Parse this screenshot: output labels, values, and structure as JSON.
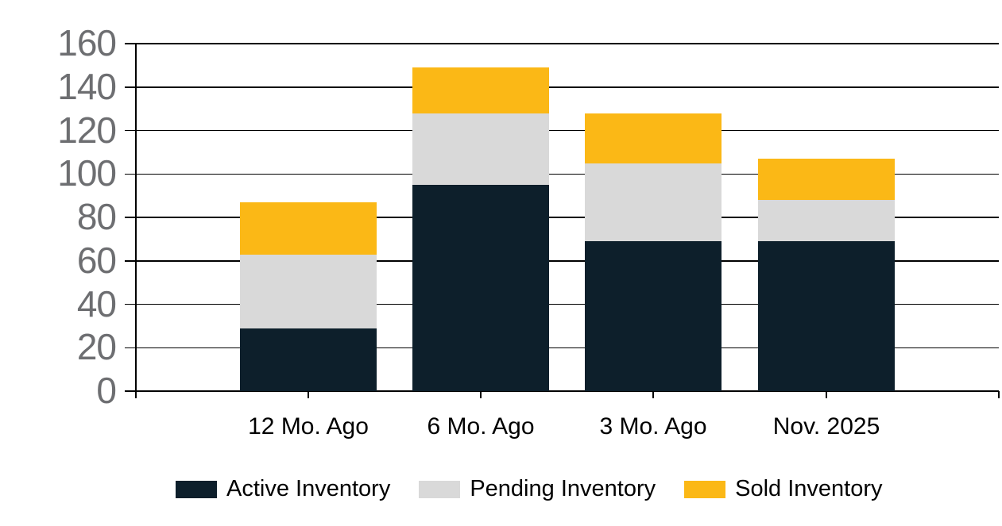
{
  "chart_data": {
    "type": "bar",
    "stacked": true,
    "title": "",
    "xlabel": "",
    "ylabel": "",
    "categories": [
      "12 Mo. Ago",
      "6 Mo. Ago",
      "3 Mo. Ago",
      "Nov. 2025"
    ],
    "series": [
      {
        "name": "Active Inventory",
        "color": "#0d1f2b",
        "values": [
          29,
          95,
          69,
          69
        ]
      },
      {
        "name": "Pending Inventory",
        "color": "#d9d9d9",
        "values": [
          34,
          33,
          36,
          19
        ]
      },
      {
        "name": "Sold Inventory",
        "color": "#fbb816",
        "values": [
          24,
          21,
          23,
          19
        ]
      }
    ],
    "stack_totals": [
      87,
      149,
      128,
      107
    ],
    "ylim": [
      0,
      160
    ],
    "yticks": [
      0,
      20,
      40,
      60,
      80,
      100,
      120,
      140,
      160
    ],
    "grid": "horizontal",
    "legend_position": "bottom",
    "colors": {
      "axis_tick_label": "#6d6e71",
      "gridline": "#000000",
      "category_text": "#000000",
      "background": "#ffffff"
    }
  }
}
